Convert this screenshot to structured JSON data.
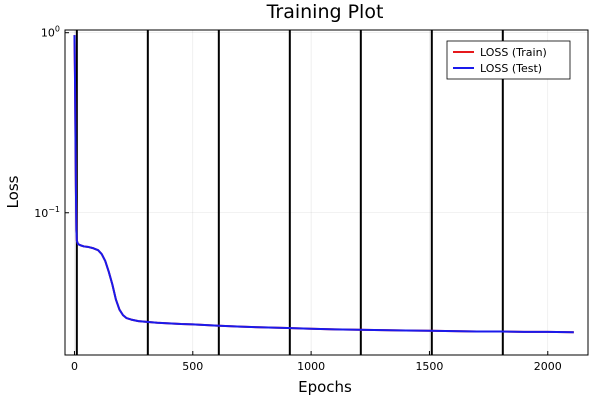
{
  "chart_data": {
    "type": "line",
    "title": "Training Plot",
    "xlabel": "Epochs",
    "ylabel": "Loss",
    "y_scale": "log10",
    "xlim": [
      -40,
      2170
    ],
    "ylim_log10": [
      -1.79,
      0.015
    ],
    "grid": true,
    "legend_position": "top-right",
    "x_ticks": [
      0,
      500,
      1000,
      1500,
      2000
    ],
    "x_tick_labels": [
      "0",
      "500",
      "1000",
      "1500",
      "2000"
    ],
    "y_ticks": [
      {
        "value": 1.0,
        "base": "10",
        "exp": "0"
      },
      {
        "value": 0.1,
        "base": "10",
        "exp": "−1"
      }
    ],
    "vertical_lines_x": [
      10,
      310,
      610,
      910,
      1210,
      1510,
      1810
    ],
    "series": [
      {
        "name": "LOSS (Train)",
        "color": "#e6191c",
        "points": [
          [
            0,
            0.97
          ],
          [
            2,
            0.6
          ],
          [
            4,
            0.3
          ],
          [
            6,
            0.14
          ],
          [
            8,
            0.08
          ],
          [
            10,
            0.07
          ],
          [
            15,
            0.067
          ],
          [
            25,
            0.066
          ],
          [
            40,
            0.065
          ],
          [
            60,
            0.0645
          ],
          [
            80,
            0.0635
          ],
          [
            100,
            0.062
          ],
          [
            115,
            0.059
          ],
          [
            130,
            0.054
          ],
          [
            145,
            0.047
          ],
          [
            160,
            0.04
          ],
          [
            175,
            0.033
          ],
          [
            190,
            0.029
          ],
          [
            205,
            0.027
          ],
          [
            220,
            0.026
          ],
          [
            240,
            0.0255
          ],
          [
            270,
            0.025
          ],
          [
            300,
            0.0248
          ],
          [
            350,
            0.0245
          ],
          [
            400,
            0.0243
          ],
          [
            450,
            0.0241
          ],
          [
            500,
            0.024
          ],
          [
            550,
            0.0238
          ],
          [
            600,
            0.0236
          ],
          [
            700,
            0.0233
          ],
          [
            800,
            0.0231
          ],
          [
            900,
            0.0229
          ],
          [
            1000,
            0.0227
          ],
          [
            1100,
            0.0225
          ],
          [
            1200,
            0.0224
          ],
          [
            1300,
            0.0223
          ],
          [
            1400,
            0.0222
          ],
          [
            1500,
            0.0221
          ],
          [
            1600,
            0.022
          ],
          [
            1700,
            0.0219
          ],
          [
            1800,
            0.0219
          ],
          [
            1900,
            0.0218
          ],
          [
            2000,
            0.0218
          ],
          [
            2110,
            0.0217
          ]
        ]
      },
      {
        "name": "LOSS (Test)",
        "color": "#1a1aeb",
        "points": [
          [
            0,
            0.97
          ],
          [
            2,
            0.6
          ],
          [
            4,
            0.3
          ],
          [
            6,
            0.14
          ],
          [
            8,
            0.08
          ],
          [
            10,
            0.07
          ],
          [
            15,
            0.067
          ],
          [
            25,
            0.066
          ],
          [
            40,
            0.065
          ],
          [
            60,
            0.0645
          ],
          [
            80,
            0.0635
          ],
          [
            100,
            0.062
          ],
          [
            115,
            0.059
          ],
          [
            130,
            0.054
          ],
          [
            145,
            0.047
          ],
          [
            160,
            0.04
          ],
          [
            175,
            0.033
          ],
          [
            190,
            0.029
          ],
          [
            205,
            0.027
          ],
          [
            220,
            0.026
          ],
          [
            240,
            0.0255
          ],
          [
            270,
            0.025
          ],
          [
            300,
            0.0248
          ],
          [
            350,
            0.0245
          ],
          [
            400,
            0.0243
          ],
          [
            450,
            0.0241
          ],
          [
            500,
            0.024
          ],
          [
            550,
            0.0238
          ],
          [
            600,
            0.0236
          ],
          [
            700,
            0.0233
          ],
          [
            800,
            0.0231
          ],
          [
            900,
            0.0229
          ],
          [
            1000,
            0.0227
          ],
          [
            1100,
            0.0225
          ],
          [
            1200,
            0.0224
          ],
          [
            1300,
            0.0223
          ],
          [
            1400,
            0.0222
          ],
          [
            1500,
            0.0221
          ],
          [
            1600,
            0.022
          ],
          [
            1700,
            0.0219
          ],
          [
            1800,
            0.0219
          ],
          [
            1900,
            0.0218
          ],
          [
            2000,
            0.0218
          ],
          [
            2110,
            0.0217
          ]
        ]
      }
    ]
  }
}
